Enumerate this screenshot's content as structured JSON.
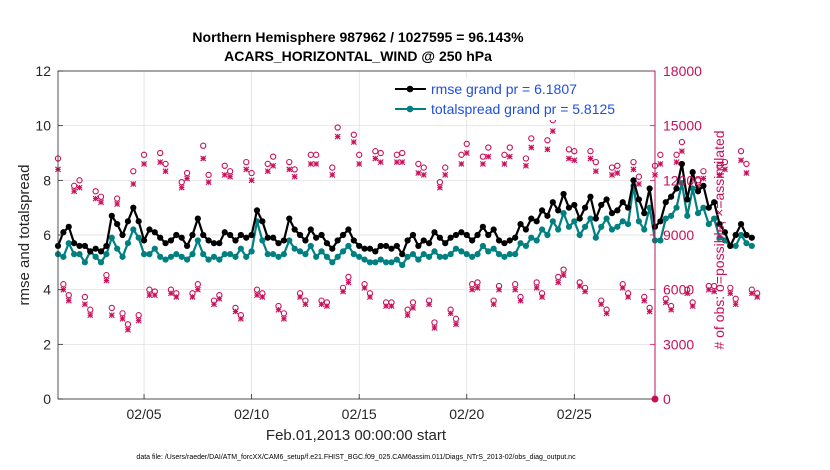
{
  "chart_data": {
    "type": "line",
    "title_line1": "Northern Hemisphere 987962 / 1027595 = 96.143%",
    "title_line2": "ACARS_HORIZONTAL_WIND @ 250 hPa",
    "xlabel": "Feb.01,2013 00:00:00 start",
    "ylabel": "rmse and totalspread",
    "y2label": "# of obs: o=possible; ×=assimilated",
    "footnote": "data file: /Users/raeder/DAI/ATM_forcXX/CAM6_setup/f.e21.FHIST_BGC.f09_025.CAM6assim.011/Diags_NTrS_2013-02/obs_diag_output.nc",
    "xlim": [
      1,
      28.75
    ],
    "ylim": [
      0,
      12
    ],
    "y2lim": [
      0,
      18000
    ],
    "yticks": [
      "0",
      "2",
      "4",
      "6",
      "8",
      "10",
      "12"
    ],
    "y2ticks": [
      "0",
      "3000",
      "6000",
      "9000",
      "12000",
      "15000",
      "18000"
    ],
    "xticks": [
      {
        "label": "02/05",
        "day": 5
      },
      {
        "label": "02/10",
        "day": 10
      },
      {
        "label": "02/15",
        "day": 15
      },
      {
        "label": "02/20",
        "day": 20
      },
      {
        "label": "02/25",
        "day": 25
      }
    ],
    "x_start_day": 1.0,
    "x_step_days": 0.25,
    "legend": [
      {
        "name": "rmse grand pr = 6.1807",
        "color": "#000000"
      },
      {
        "name": "totalspread grand pr = 5.8125",
        "color": "#008080"
      }
    ],
    "series": [
      {
        "name": "rmse",
        "color": "#000000",
        "values": [
          5.6,
          6.1,
          6.3,
          5.7,
          5.6,
          5.6,
          5.4,
          5.5,
          5.4,
          5.6,
          6.7,
          6.4,
          6.0,
          6.5,
          7.0,
          6.5,
          5.8,
          6.2,
          6.1,
          5.9,
          5.7,
          5.8,
          6.0,
          5.9,
          5.6,
          6.0,
          6.6,
          6.0,
          5.8,
          5.7,
          5.7,
          6.1,
          6.0,
          5.8,
          6.0,
          5.9,
          6.0,
          6.9,
          6.5,
          5.9,
          5.9,
          5.7,
          5.8,
          6.6,
          6.2,
          6.0,
          5.8,
          6.2,
          5.9,
          6.0,
          5.7,
          5.5,
          5.8,
          6.0,
          6.2,
          5.8,
          5.6,
          5.5,
          5.5,
          5.4,
          5.6,
          5.6,
          5.5,
          5.6,
          5.3,
          5.8,
          6.0,
          5.6,
          5.8,
          5.7,
          6.1,
          5.9,
          5.7,
          5.9,
          6.0,
          6.1,
          6.0,
          5.8,
          6.0,
          6.3,
          6.0,
          6.2,
          5.8,
          5.7,
          5.8,
          5.9,
          6.4,
          6.2,
          6.6,
          6.5,
          6.9,
          6.7,
          7.2,
          6.9,
          7.5,
          7.0,
          7.1,
          6.6,
          7.0,
          7.4,
          6.6,
          7.1,
          7.3,
          6.8,
          6.9,
          7.2,
          7.0,
          8.0,
          7.3,
          6.8,
          7.7,
          6.3,
          6.5,
          7.2,
          7.4,
          7.7,
          8.6,
          7.3,
          8.3,
          7.6,
          7.8,
          7.0,
          7.2,
          6.4,
          6.1,
          5.6,
          6.0,
          6.4,
          6.0,
          5.9
        ]
      },
      {
        "name": "totalspread",
        "color": "#008080",
        "values": [
          5.3,
          5.2,
          5.7,
          5.3,
          5.3,
          5.0,
          5.4,
          5.2,
          5.0,
          5.3,
          5.9,
          5.5,
          5.2,
          5.7,
          6.2,
          5.9,
          5.3,
          5.3,
          5.5,
          5.2,
          5.1,
          5.2,
          5.3,
          5.2,
          5.1,
          5.3,
          5.8,
          5.3,
          5.1,
          5.2,
          5.1,
          5.3,
          5.3,
          5.2,
          5.5,
          5.2,
          5.4,
          6.5,
          5.8,
          5.3,
          5.3,
          5.2,
          5.3,
          5.8,
          5.5,
          5.4,
          5.3,
          5.6,
          5.2,
          5.4,
          5.2,
          5.0,
          5.2,
          5.4,
          5.6,
          5.3,
          5.2,
          5.1,
          5.0,
          5.0,
          5.1,
          5.0,
          5.0,
          5.1,
          4.9,
          5.2,
          5.3,
          5.1,
          5.3,
          5.2,
          5.4,
          5.2,
          5.2,
          5.3,
          5.5,
          5.4,
          5.3,
          5.2,
          5.3,
          5.6,
          5.4,
          5.5,
          5.3,
          5.2,
          5.3,
          5.3,
          5.7,
          5.6,
          5.9,
          5.8,
          6.2,
          6.0,
          6.5,
          6.2,
          6.8,
          6.3,
          6.5,
          6.0,
          6.3,
          6.6,
          5.9,
          6.3,
          6.6,
          6.2,
          6.3,
          6.5,
          6.4,
          7.8,
          6.5,
          6.2,
          7.0,
          5.8,
          5.8,
          6.6,
          6.7,
          7.0,
          7.9,
          6.7,
          7.7,
          6.8,
          7.0,
          6.4,
          6.6,
          5.9,
          5.8,
          5.6,
          5.6,
          6.0,
          5.7,
          5.6
        ]
      }
    ],
    "obs_possible": [
      13200,
      6300,
      5700,
      11700,
      12000,
      5600,
      4900,
      11400,
      11100,
      6800,
      5000,
      11000,
      4700,
      4100,
      12500,
      4600,
      13400,
      6000,
      5900,
      13500,
      12900,
      6000,
      5800,
      11900,
      12400,
      5800,
      6300,
      13900,
      12300,
      5400,
      5700,
      12800,
      12500,
      5000,
      4600,
      13000,
      12400,
      6000,
      5800,
      12900,
      13300,
      5100,
      4700,
      13000,
      12600,
      5800,
      5400,
      13400,
      13400,
      5400,
      5300,
      12700,
      14900,
      6100,
      6700,
      14500,
      13400,
      6300,
      5800,
      13600,
      13500,
      5300,
      5300,
      13400,
      13500,
      4900,
      5300,
      12900,
      12700,
      5400,
      4200,
      11900,
      12700,
      4900,
      4400,
      13400,
      14000,
      6300,
      6400,
      13300,
      13800,
      5400,
      6200,
      13400,
      13800,
      6300,
      5600,
      13200,
      14300,
      6400,
      5800,
      14200,
      15300,
      6700,
      7100,
      13700,
      13600,
      6400,
      6100,
      13600,
      13000,
      5400,
      4900,
      12700,
      12800,
      6300,
      5800,
      13000,
      12200,
      5600,
      5000,
      12800,
      13400,
      5500,
      5100,
      13400,
      14100,
      6000,
      5300,
      12000,
      12500,
      6200,
      6200,
      12800,
      13000,
      6100,
      5500,
      13600,
      12900,
      6000,
      5800
    ],
    "obs_assimilated": [
      12600,
      6000,
      5400,
      11400,
      11600,
      5200,
      4600,
      11000,
      10800,
      6500,
      4600,
      10700,
      4400,
      3800,
      11800,
      4300,
      12900,
      5700,
      5700,
      13000,
      12500,
      5800,
      5600,
      11600,
      12100,
      5600,
      6000,
      13200,
      11900,
      5200,
      5500,
      12300,
      12200,
      4800,
      4400,
      12600,
      12000,
      5700,
      5600,
      12500,
      12800,
      4900,
      4400,
      12600,
      12200,
      5600,
      5200,
      12900,
      12900,
      5200,
      5100,
      12300,
      14400,
      5900,
      6400,
      14100,
      12900,
      6100,
      5600,
      13200,
      13000,
      5100,
      5100,
      13000,
      13000,
      4600,
      5000,
      12400,
      12300,
      5200,
      3900,
      11600,
      12300,
      4700,
      4100,
      12900,
      13500,
      6000,
      6100,
      12900,
      13300,
      5200,
      6000,
      12900,
      13300,
      6000,
      5400,
      12800,
      13800,
      6100,
      5600,
      13700,
      14700,
      6400,
      6800,
      13200,
      13100,
      6200,
      5900,
      13200,
      12500,
      5200,
      4700,
      12300,
      12400,
      6100,
      5600,
      12600,
      11800,
      5400,
      4800,
      12300,
      12900,
      5300,
      4900,
      13000,
      13600,
      5800,
      5100,
      11600,
      12100,
      6000,
      5900,
      12300,
      12600,
      5800,
      5200,
      13100,
      12400,
      5800,
      5600
    ]
  }
}
